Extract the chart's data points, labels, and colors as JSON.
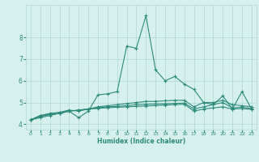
{
  "xlabel": "Humidex (Indice chaleur)",
  "ylabel": "",
  "x": [
    0,
    1,
    2,
    3,
    4,
    5,
    6,
    7,
    8,
    9,
    10,
    11,
    12,
    13,
    14,
    15,
    16,
    17,
    18,
    19,
    20,
    21,
    22,
    23
  ],
  "series": [
    [
      4.2,
      4.4,
      4.45,
      4.5,
      4.6,
      4.3,
      4.6,
      5.35,
      5.4,
      5.5,
      7.6,
      7.5,
      9.0,
      6.5,
      6.0,
      6.2,
      5.85,
      5.6,
      5.0,
      4.9,
      5.3,
      4.7,
      5.5,
      4.7
    ],
    [
      4.2,
      4.4,
      4.5,
      4.55,
      4.65,
      4.6,
      4.7,
      4.8,
      4.85,
      4.9,
      4.95,
      5.0,
      5.05,
      5.05,
      5.08,
      5.1,
      5.1,
      4.8,
      5.0,
      5.0,
      5.1,
      4.9,
      4.85,
      4.8
    ],
    [
      4.2,
      4.35,
      4.45,
      4.5,
      4.6,
      4.65,
      4.7,
      4.75,
      4.8,
      4.82,
      4.85,
      4.9,
      4.92,
      4.93,
      4.94,
      4.96,
      4.97,
      4.7,
      4.8,
      4.9,
      5.0,
      4.75,
      4.78,
      4.72
    ],
    [
      4.2,
      4.3,
      4.4,
      4.5,
      4.6,
      4.65,
      4.7,
      4.73,
      4.76,
      4.78,
      4.8,
      4.82,
      4.84,
      4.86,
      4.88,
      4.9,
      4.92,
      4.6,
      4.7,
      4.75,
      4.8,
      4.7,
      4.72,
      4.68
    ]
  ],
  "line_color": "#2e8b7a",
  "bg_color": "#d6f0ee",
  "grid_color": "#b0d8d4",
  "ylim": [
    3.75,
    9.5
  ],
  "yticks": [
    4,
    5,
    6,
    7,
    8
  ],
  "xticks": [
    0,
    1,
    2,
    3,
    4,
    5,
    6,
    7,
    8,
    9,
    10,
    11,
    12,
    13,
    14,
    15,
    16,
    17,
    18,
    19,
    20,
    21,
    22,
    23
  ],
  "figsize": [
    3.2,
    2.0
  ],
  "dpi": 100
}
